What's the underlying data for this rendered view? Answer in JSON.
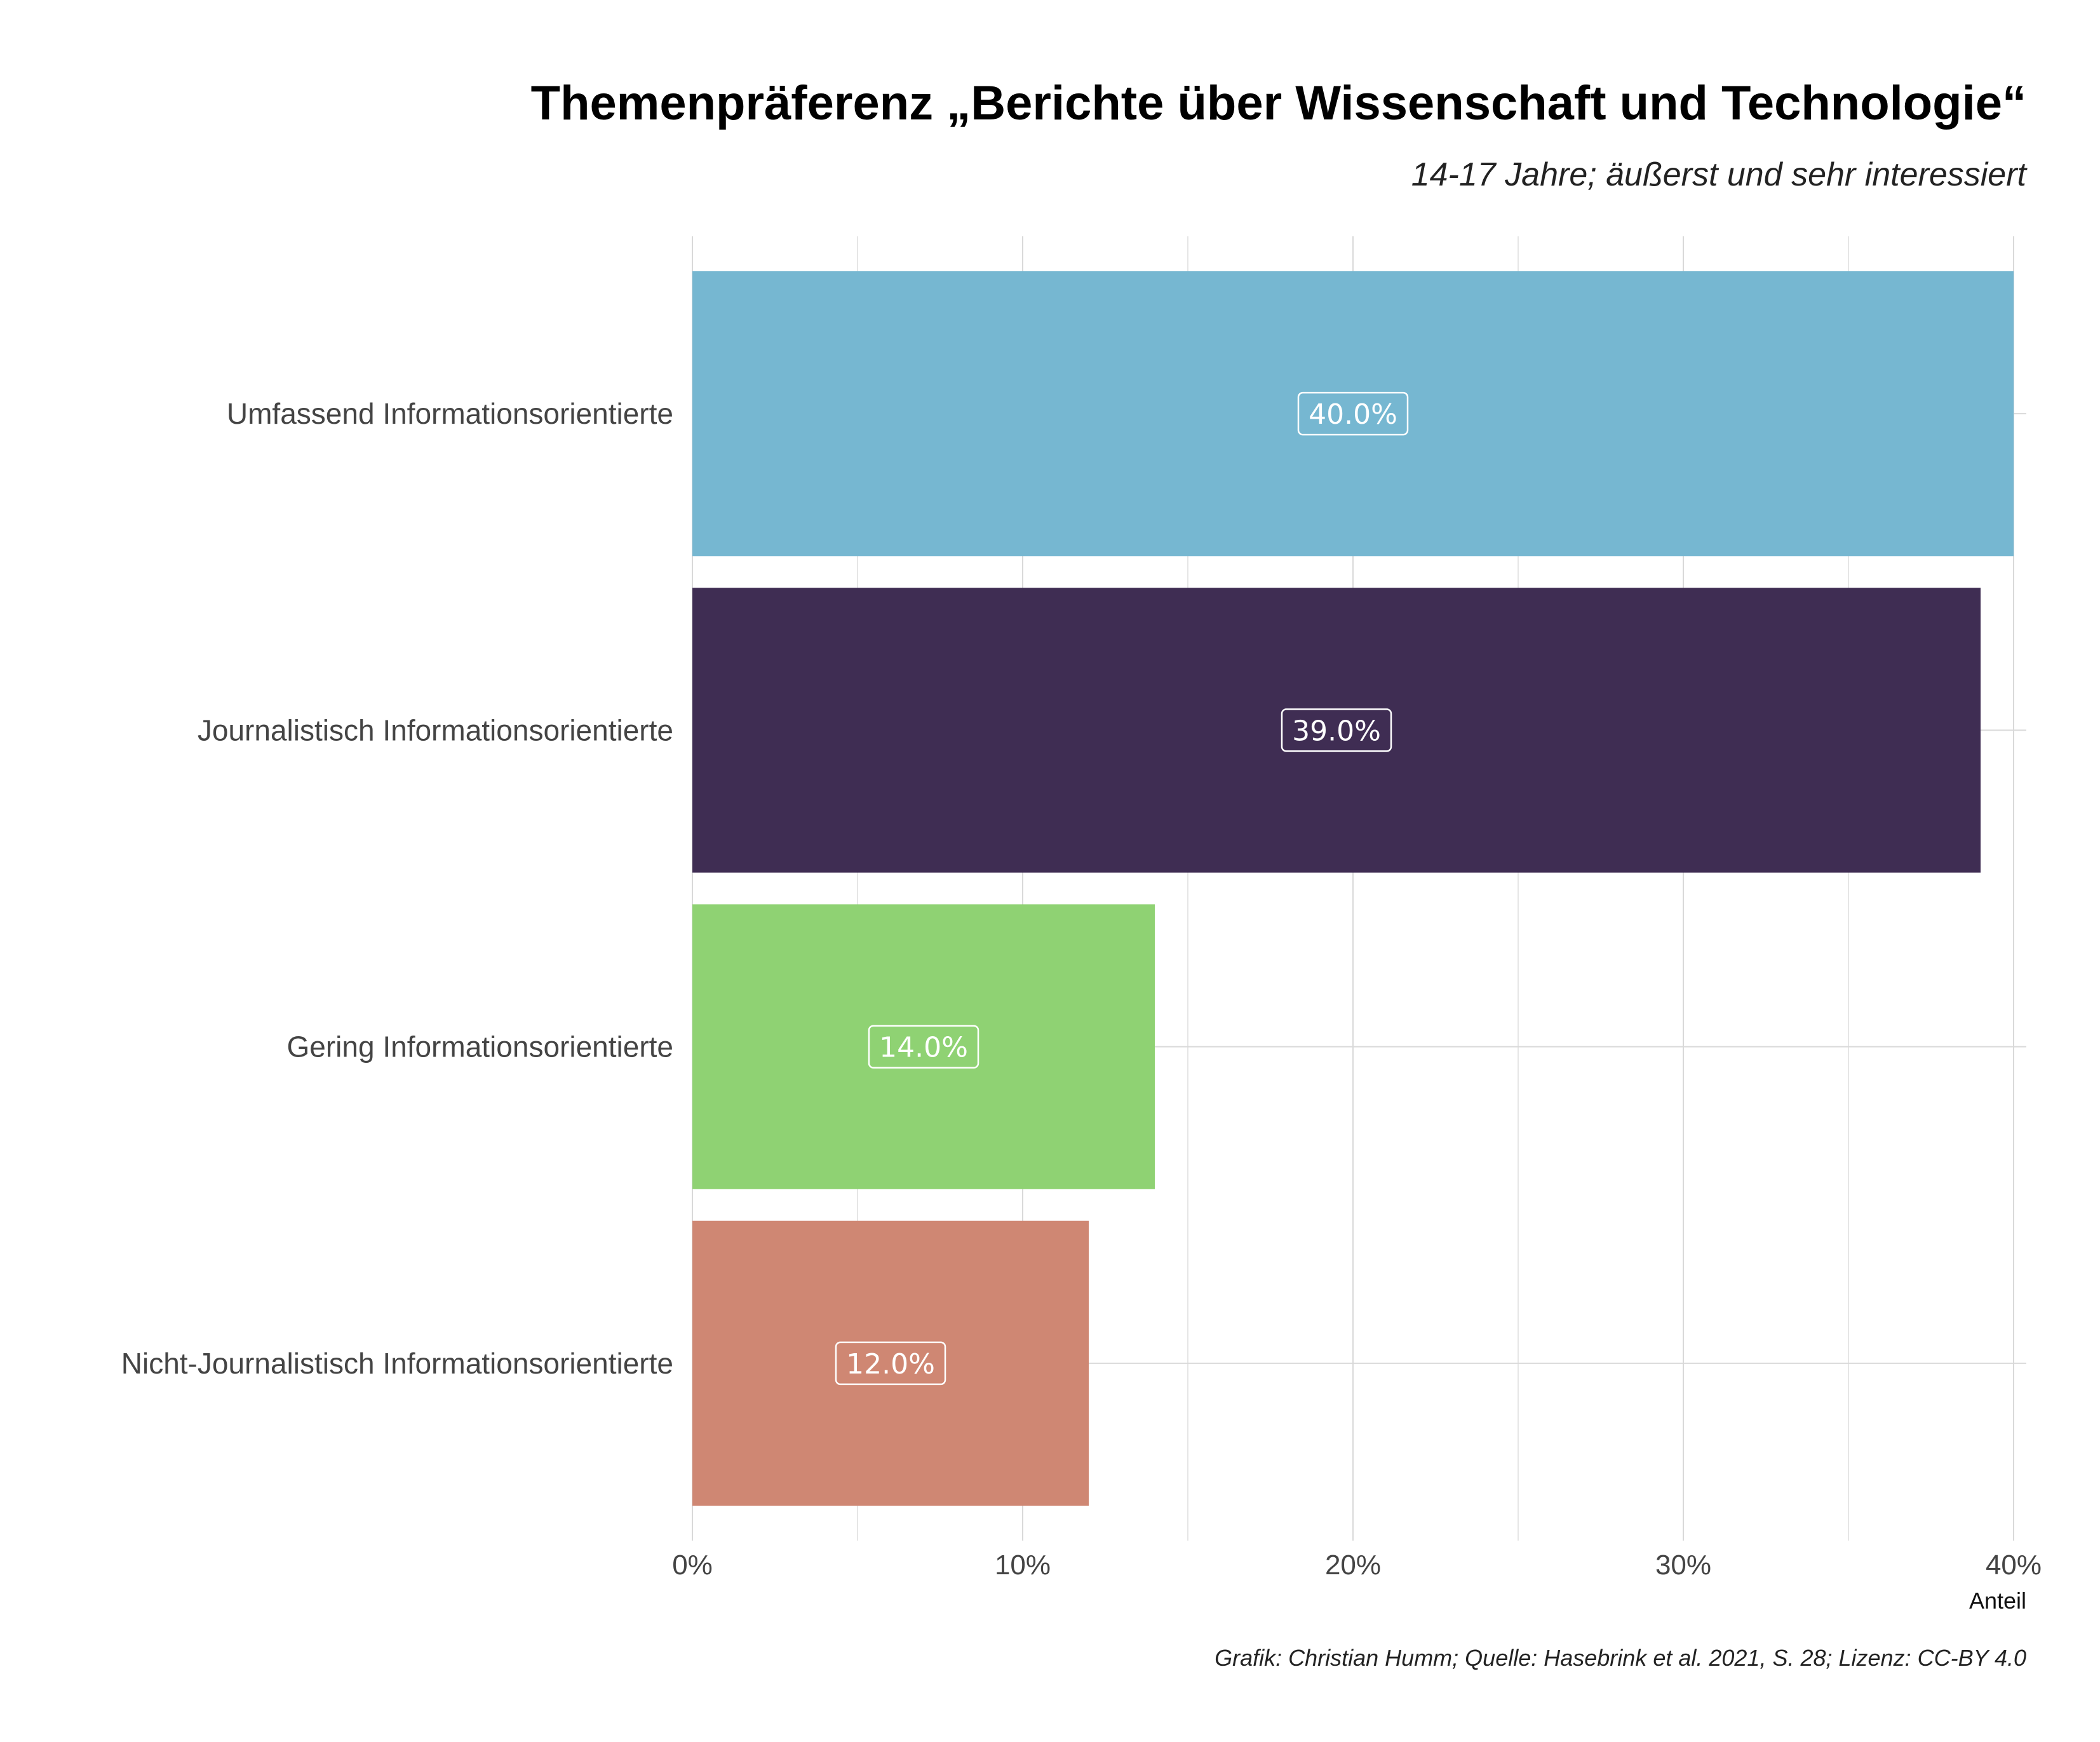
{
  "chart_data": {
    "type": "bar",
    "orientation": "horizontal",
    "title": "Themenpräferenz „Berichte über Wissenschaft und Technologie“",
    "subtitle": "14-17 Jahre; äußerst und sehr interessiert",
    "xlabel": "Anteil",
    "ylabel": "",
    "categories": [
      "Umfassend Informationsorientierte",
      "Journalistisch Informationsorientierte",
      "Gering Informationsorientierte",
      "Nicht-Journalistisch Informationsorientierte"
    ],
    "values": [
      40.0,
      39.0,
      14.0,
      12.0
    ],
    "value_labels": [
      "40.0%",
      "39.0%",
      "14.0%",
      "12.0%"
    ],
    "colors": [
      "#76b7d1",
      "#3f2d53",
      "#8fd273",
      "#cf8773"
    ],
    "xlim": [
      0,
      40
    ],
    "ticks": [
      "0%",
      "10%",
      "20%",
      "30%",
      "40%"
    ],
    "grid": true,
    "legend": "none",
    "caption": "Grafik: Christian Humm; Quelle: Hasebrink et al. 2021, S. 28; Lizenz: CC-BY 4.0"
  }
}
